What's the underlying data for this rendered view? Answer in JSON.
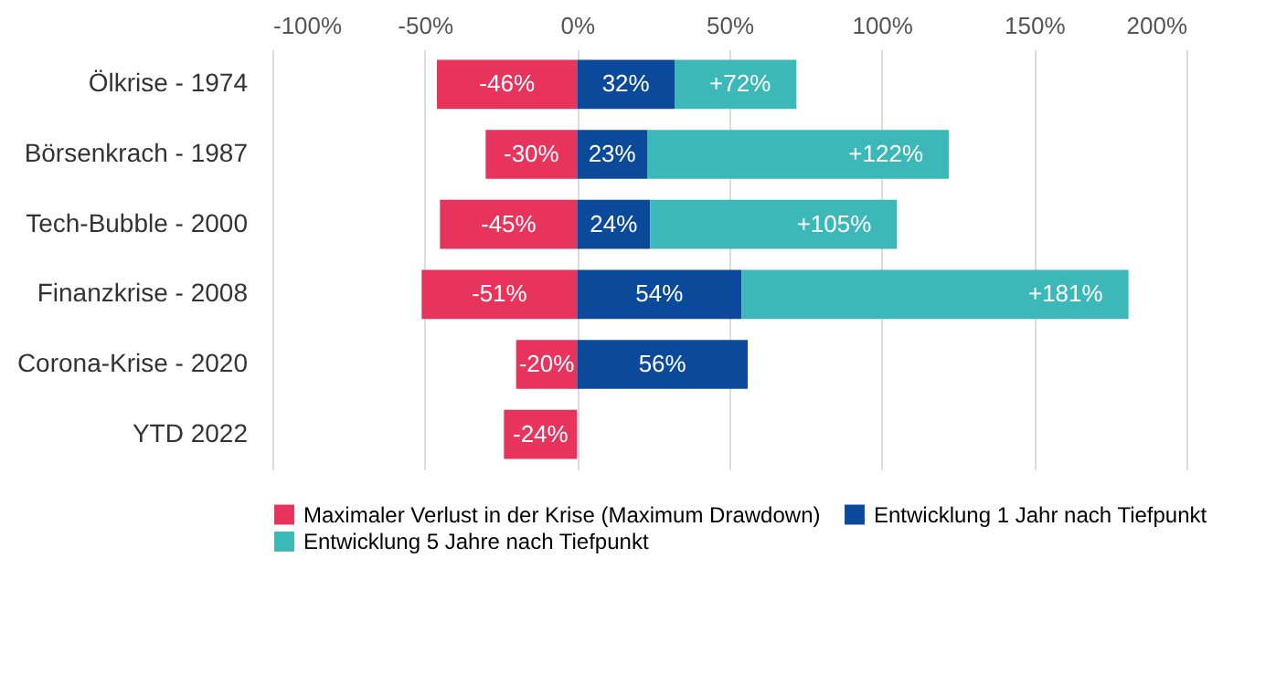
{
  "chart_data": {
    "type": "bar",
    "orientation": "horizontal",
    "stacked": true,
    "categories": [
      "Ölkrise - 1974",
      "Börsenkrach - 1987",
      "Tech-Bubble - 2000",
      "Finanzkrise - 2008",
      "Corona-Krise - 2020",
      "YTD 2022"
    ],
    "series": [
      {
        "name": "Maximaler Verlust in der Krise (Maximum Drawdown)",
        "color": "#e8335d",
        "values": [
          -46,
          -30,
          -45,
          -51,
          -20,
          -24
        ],
        "value_labels": [
          "-46%",
          "-30%",
          "-45%",
          "-51%",
          "-20%",
          "-24%"
        ]
      },
      {
        "name": "Entwicklung 1 Jahr nach Tiefpunkt",
        "color": "#0b4a9b",
        "values": [
          32,
          23,
          24,
          54,
          56,
          null
        ],
        "value_labels": [
          "32%",
          "23%",
          "24%",
          "54%",
          "56%",
          null
        ]
      },
      {
        "name": "Entwicklung 5 Jahre nach Tiefpunkt",
        "color": "#3db8b8",
        "values": [
          40,
          99,
          81,
          127,
          null,
          null
        ]
      }
    ],
    "annotations": [
      {
        "text": "+72%",
        "x": 72,
        "y": "Ölkrise - 1974"
      },
      {
        "text": "+122%",
        "x": 122,
        "y": "Börsenkrach - 1987"
      },
      {
        "text": "+105%",
        "x": 105,
        "y": "Tech-Bubble - 2000"
      },
      {
        "text": "+181%",
        "x": 181,
        "y": "Finanzkrise - 2008"
      }
    ],
    "xlim": [
      -100,
      200
    ],
    "xticks": [
      {
        "value": -100,
        "label": "-100%"
      },
      {
        "value": -50,
        "label": "-50%"
      },
      {
        "value": 0,
        "label": "0%"
      },
      {
        "value": 50,
        "label": "50%"
      },
      {
        "value": 100,
        "label": "100%"
      },
      {
        "value": 150,
        "label": "150%"
      },
      {
        "value": 200,
        "label": "200%"
      }
    ],
    "grid": "x",
    "legend": "bottom"
  }
}
